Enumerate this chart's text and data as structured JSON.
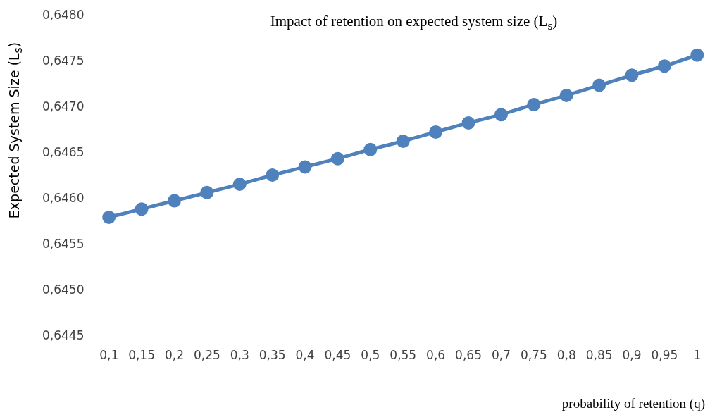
{
  "chart_data": {
    "type": "line",
    "title": "Impact of retention on expected system size (L$_{s}$)",
    "xlabel": "probability of retention (q)",
    "ylabel": "Expected System Size (L$_{s}$)",
    "categories": [
      "0,1",
      "0,15",
      "0,2",
      "0,25",
      "0,3",
      "0,35",
      "0,4",
      "0,45",
      "0,5",
      "0,55",
      "0,6",
      "0,65",
      "0,7",
      "0,75",
      "0,8",
      "0,85",
      "0,9",
      "0,95",
      "1"
    ],
    "series": [
      {
        "color": "#4f81bd",
        "values": [
          0.6458,
          0.64589,
          0.64598,
          0.64607,
          0.64616,
          0.64626,
          0.64635,
          0.64644,
          0.64654,
          0.64663,
          0.64673,
          0.64683,
          0.64692,
          0.64703,
          0.64713,
          0.64724,
          0.64735,
          0.64745,
          0.64757
        ]
      }
    ],
    "ylim": [
      0.6445,
      0.648
    ],
    "yticks": [
      {
        "value": 0.6445,
        "label": "0,6445"
      },
      {
        "value": 0.645,
        "label": "0,6450"
      },
      {
        "value": 0.6455,
        "label": "0,6455"
      },
      {
        "value": 0.646,
        "label": "0,6460"
      },
      {
        "value": 0.6465,
        "label": "0,6465"
      },
      {
        "value": 0.647,
        "label": "0,6470"
      },
      {
        "value": 0.6475,
        "label": "0,6475"
      },
      {
        "value": 0.648,
        "label": "0,6480"
      }
    ],
    "grid": false,
    "legend": false,
    "marker": "circle",
    "line_style": "solid"
  }
}
